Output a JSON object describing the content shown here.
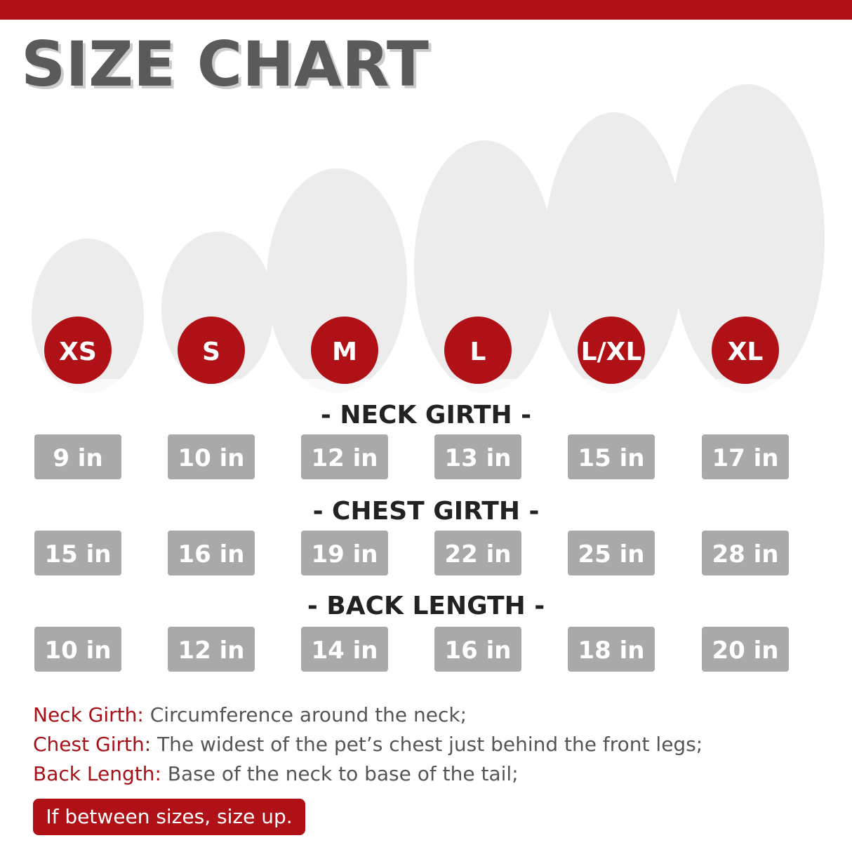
{
  "header": {
    "title": "SIZE CHART"
  },
  "sizes": [
    "XS",
    "S",
    "M",
    "L",
    "L/XL",
    "XL"
  ],
  "sections": [
    {
      "title": "- NECK GIRTH -",
      "values": [
        "9 in",
        "10 in",
        "12 in",
        "13 in",
        "15 in",
        "17 in"
      ]
    },
    {
      "title": "- CHEST GIRTH -",
      "values": [
        "15 in",
        "16 in",
        "19 in",
        "22 in",
        "25 in",
        "28 in"
      ]
    },
    {
      "title": "- BACK LENGTH -",
      "values": [
        "10 in",
        "12 in",
        "14 in",
        "16 in",
        "18 in",
        "20 in"
      ]
    }
  ],
  "definitions": [
    {
      "term": "Neck Girth:",
      "text": "Circumference around the neck;"
    },
    {
      "term": "Chest Girth:",
      "text": "The widest of the pet’s chest just behind the front legs;"
    },
    {
      "term": "Back Length:",
      "text": "Base of the neck to base of the tail;"
    }
  ],
  "note": "If between sizes, size up."
}
